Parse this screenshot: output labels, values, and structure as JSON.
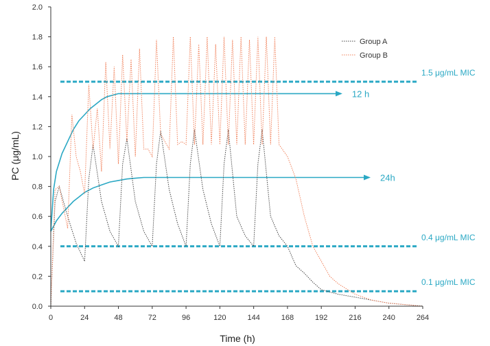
{
  "chart_data": {
    "type": "line",
    "title": "",
    "xlabel": "Time (h)",
    "ylabel": "PC (μg/mL)",
    "xlim": [
      0,
      264
    ],
    "ylim": [
      0,
      2.0
    ],
    "xticks": [
      0,
      24,
      48,
      72,
      96,
      120,
      144,
      168,
      192,
      216,
      240,
      264
    ],
    "xtick_labels": [
      "0",
      "24",
      "48",
      "72",
      "96",
      "120",
      "144",
      "168",
      "192",
      "216",
      "240",
      "264"
    ],
    "yticks": [
      0,
      0.2,
      0.4,
      0.6,
      0.8,
      1.0,
      1.2,
      1.4,
      1.6,
      1.8,
      2.0
    ],
    "ytick_labels": [
      "0.0",
      "0.2",
      "0.4",
      "0.6",
      "0.8",
      "1.0",
      "1.2",
      "1.4",
      "1.6",
      "1.8",
      "2.0"
    ],
    "grid": false,
    "legend_position": "top-right",
    "colors": {
      "group_a": "#444444",
      "group_b": "#f0805a",
      "reference": "#2aa8c4",
      "axis": "#333333"
    },
    "series": [
      {
        "name": "Group A",
        "style": "dotted",
        "color": "#444444",
        "x": [
          0,
          3,
          6,
          12,
          18,
          24,
          27,
          30,
          36,
          42,
          48,
          51,
          54,
          60,
          66,
          72,
          75,
          78,
          84,
          90,
          96,
          99,
          102,
          108,
          114,
          120,
          123,
          126,
          132,
          138,
          144,
          147,
          150,
          156,
          162,
          168,
          174,
          180,
          186,
          192,
          204,
          216,
          228,
          240,
          252,
          264
        ],
        "y": [
          0,
          0.7,
          0.8,
          0.6,
          0.42,
          0.3,
          0.85,
          1.08,
          0.7,
          0.5,
          0.4,
          0.95,
          1.12,
          0.7,
          0.5,
          0.4,
          0.95,
          1.17,
          0.78,
          0.55,
          0.4,
          0.95,
          1.18,
          0.78,
          0.55,
          0.4,
          0.95,
          1.18,
          0.6,
          0.47,
          0.4,
          0.95,
          1.18,
          0.6,
          0.47,
          0.4,
          0.27,
          0.22,
          0.16,
          0.11,
          0.08,
          0.06,
          0.04,
          0.02,
          0.01,
          0.0
        ]
      },
      {
        "name": "Group B",
        "style": "dotted",
        "color": "#f0805a",
        "x": [
          0,
          3,
          6,
          12,
          15,
          18,
          21,
          24,
          27,
          30,
          33,
          36,
          39,
          42,
          45,
          48,
          51,
          54,
          57,
          60,
          63,
          66,
          69,
          72,
          75,
          78,
          81,
          84,
          87,
          90,
          93,
          96,
          99,
          102,
          105,
          108,
          111,
          114,
          117,
          120,
          123,
          126,
          129,
          132,
          135,
          138,
          141,
          144,
          147,
          150,
          153,
          156,
          159,
          162,
          168,
          174,
          180,
          186,
          192,
          198,
          204,
          216,
          228,
          240,
          252,
          264
        ],
        "y": [
          0,
          0.78,
          0.8,
          0.52,
          1.28,
          1.0,
          0.9,
          0.75,
          1.48,
          1.05,
          1.32,
          0.9,
          1.63,
          1.05,
          1.6,
          0.95,
          1.68,
          1.1,
          1.65,
          1.0,
          1.72,
          1.05,
          1.05,
          1.0,
          1.78,
          1.15,
          1.1,
          1.05,
          1.8,
          1.08,
          1.1,
          1.08,
          1.8,
          1.08,
          1.75,
          1.08,
          1.8,
          1.08,
          1.75,
          1.08,
          1.8,
          1.08,
          1.78,
          1.08,
          1.8,
          1.08,
          1.78,
          1.08,
          1.8,
          1.08,
          1.8,
          1.08,
          1.8,
          1.08,
          1.0,
          0.85,
          0.6,
          0.4,
          0.3,
          0.2,
          0.15,
          0.08,
          0.04,
          0.02,
          0.01,
          0.0
        ]
      }
    ],
    "reference_lines": [
      {
        "y": 1.5,
        "label": "1.5 μg/mL MIC"
      },
      {
        "y": 0.4,
        "label": "0.4 μg/mL MIC"
      },
      {
        "y": 0.1,
        "label": "0.1 μg/mL MIC"
      }
    ],
    "annotation_curves": [
      {
        "label": "12 h",
        "color": "#2aa8c4",
        "x": [
          0,
          2,
          4,
          8,
          12,
          16,
          20,
          24,
          28,
          32,
          36,
          40,
          44,
          48,
          52,
          56,
          60,
          66,
          72,
          84,
          96,
          108,
          120,
          132,
          144,
          156,
          168,
          180,
          192,
          204,
          206
        ],
        "y": [
          0.5,
          0.78,
          0.9,
          1.02,
          1.1,
          1.18,
          1.24,
          1.28,
          1.32,
          1.35,
          1.38,
          1.4,
          1.41,
          1.42,
          1.42,
          1.42,
          1.42,
          1.42,
          1.42,
          1.42,
          1.42,
          1.42,
          1.42,
          1.42,
          1.42,
          1.42,
          1.42,
          1.42,
          1.42,
          1.42,
          1.42
        ]
      },
      {
        "label": "24h",
        "color": "#2aa8c4",
        "x": [
          0,
          4,
          8,
          12,
          16,
          20,
          24,
          30,
          36,
          42,
          48,
          54,
          60,
          66,
          72,
          84,
          96,
          108,
          120,
          132,
          144,
          156,
          168,
          180,
          192,
          204,
          216,
          226
        ],
        "y": [
          0.5,
          0.57,
          0.62,
          0.66,
          0.7,
          0.73,
          0.76,
          0.79,
          0.81,
          0.83,
          0.84,
          0.85,
          0.855,
          0.86,
          0.86,
          0.86,
          0.86,
          0.86,
          0.86,
          0.86,
          0.86,
          0.86,
          0.86,
          0.86,
          0.86,
          0.86,
          0.86,
          0.86
        ]
      }
    ]
  }
}
